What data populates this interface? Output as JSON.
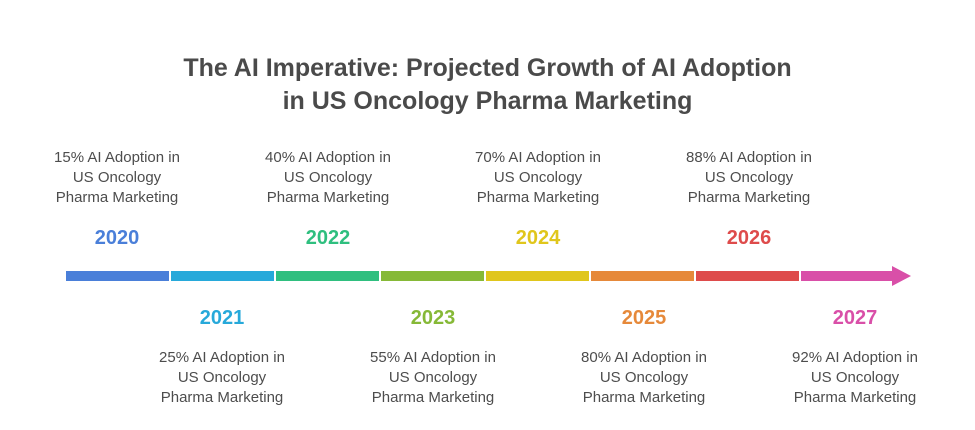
{
  "title_line1": "The AI Imperative: Projected Growth of AI Adoption",
  "title_line2": "in US Oncology Pharma Marketing",
  "milestones": [
    {
      "year": "2020",
      "text": "15% AI Adoption in\nUS Oncology\nPharma Marketing",
      "color": "#4a7fd9"
    },
    {
      "year": "2021",
      "text": "25% AI Adoption in\nUS Oncology\nPharma Marketing",
      "color": "#27a9da"
    },
    {
      "year": "2022",
      "text": "40% AI Adoption in\nUS Oncology\nPharma Marketing",
      "color": "#2fbf7f"
    },
    {
      "year": "2023",
      "text": "55% AI Adoption in\nUS Oncology\nPharma Marketing",
      "color": "#86b937"
    },
    {
      "year": "2024",
      "text": "70% AI Adoption in\nUS Oncology\nPharma Marketing",
      "color": "#e0c61c"
    },
    {
      "year": "2025",
      "text": "80% AI Adoption in\nUS Oncology\nPharma Marketing",
      "color": "#e6893a"
    },
    {
      "year": "2026",
      "text": "88% AI Adoption in\nUS Oncology\nPharma Marketing",
      "color": "#de4b4b"
    },
    {
      "year": "2027",
      "text": "92% AI Adoption in\nUS Oncology\nPharma Marketing",
      "color": "#d94fa8"
    }
  ]
}
